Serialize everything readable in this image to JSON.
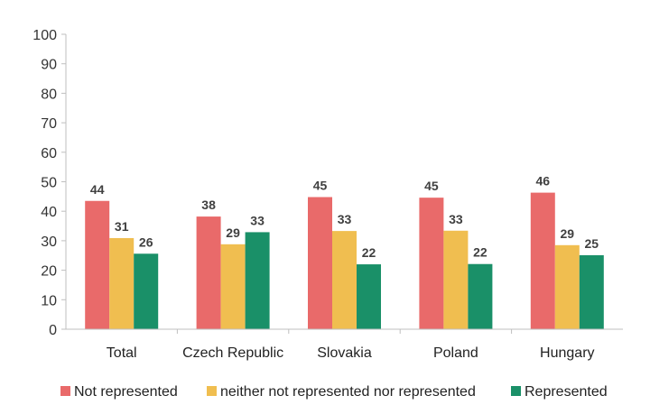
{
  "chart_data": {
    "type": "bar",
    "title": "",
    "xlabel": "",
    "ylabel": "",
    "ylim": [
      0,
      100
    ],
    "yticks": [
      0,
      10,
      20,
      30,
      40,
      50,
      60,
      70,
      80,
      90,
      100
    ],
    "grid": false,
    "legend_position": "bottom",
    "categories": [
      "Total",
      "Czech Republic",
      "Slovakia",
      "Poland",
      "Hungary"
    ],
    "series": [
      {
        "name": "Not represented",
        "color": "#e96a6a",
        "values": [
          44,
          38,
          45,
          45,
          46
        ],
        "heights": [
          43.5,
          38.2,
          44.8,
          44.6,
          46.3
        ]
      },
      {
        "name": "neither not represented nor represented",
        "color": "#f0be50",
        "values": [
          31,
          29,
          33,
          33,
          29
        ],
        "heights": [
          30.9,
          28.8,
          33.3,
          33.4,
          28.5
        ]
      },
      {
        "name": "Represented",
        "color": "#1a9068",
        "values": [
          26,
          33,
          22,
          22,
          25
        ],
        "heights": [
          25.6,
          32.9,
          22.0,
          22.1,
          25.1
        ]
      }
    ]
  }
}
